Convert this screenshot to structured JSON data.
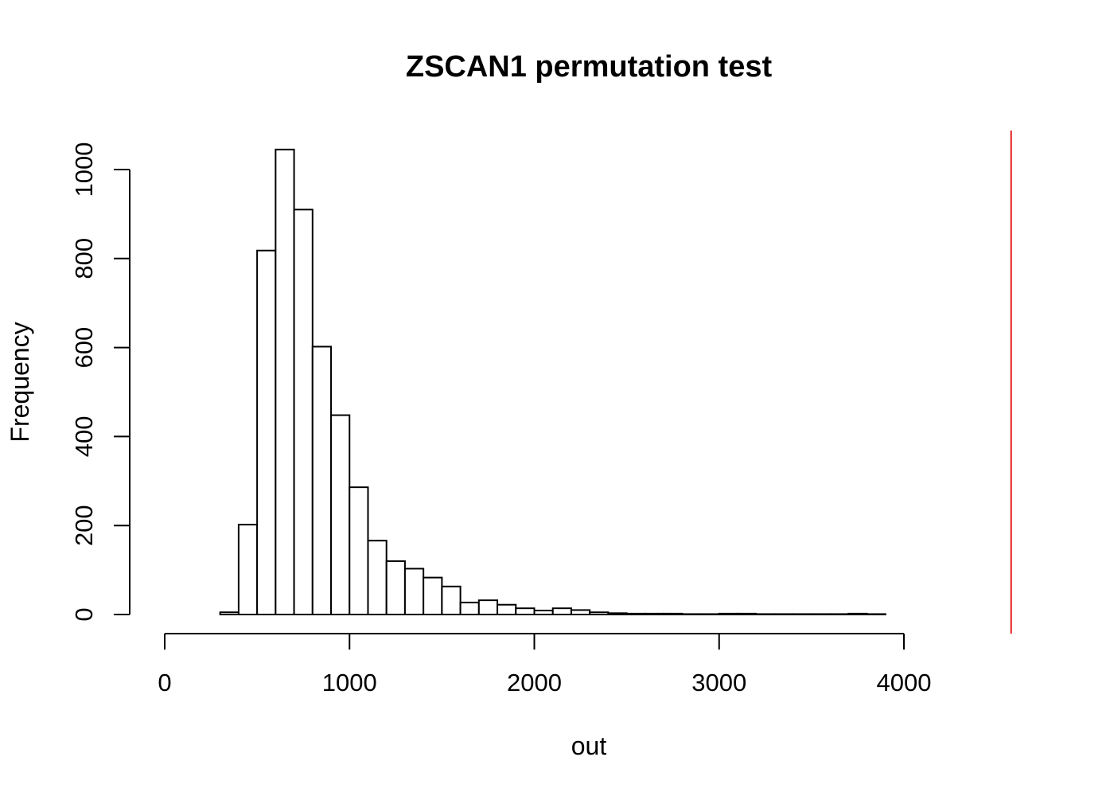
{
  "chart_data": {
    "type": "bar",
    "title": "ZSCAN1 permutation test",
    "xlabel": "out",
    "ylabel": "Frequency",
    "bin_width": 100,
    "bin_starts": [
      300,
      400,
      500,
      600,
      700,
      800,
      900,
      1000,
      1100,
      1200,
      1300,
      1400,
      1500,
      1600,
      1700,
      1800,
      1900,
      2000,
      2100,
      2200,
      2300,
      2400,
      2500,
      2600,
      2700,
      2800,
      2900,
      3000,
      3100,
      3200,
      3300,
      3400,
      3500,
      3600,
      3700,
      3800
    ],
    "values": [
      5,
      202,
      818,
      1045,
      910,
      602,
      448,
      286,
      166,
      120,
      103,
      83,
      63,
      27,
      32,
      22,
      14,
      9,
      14,
      10,
      5,
      3,
      2,
      2,
      2,
      1,
      1,
      2,
      2,
      1,
      1,
      1,
      1,
      1,
      2,
      1
    ],
    "x_ticks": [
      0,
      1000,
      2000,
      3000,
      4000
    ],
    "y_ticks": [
      0,
      200,
      400,
      600,
      800,
      1000
    ],
    "xlim": [
      0,
      4000
    ],
    "ylim": [
      0,
      1000
    ],
    "reference_line": {
      "x": 4580,
      "color": "#e41a1c"
    },
    "bar_fill": "#ffffff",
    "bar_stroke": "#000000",
    "grid": false
  }
}
